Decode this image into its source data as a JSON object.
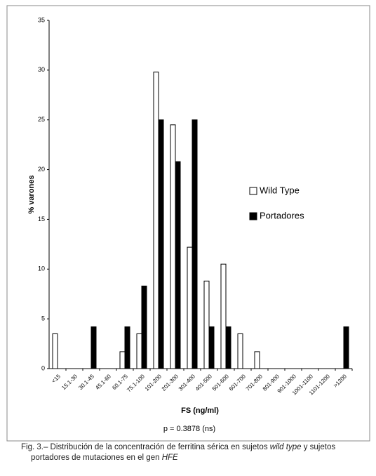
{
  "chart_data": {
    "type": "bar",
    "categories": [
      "<15",
      "15.1-30",
      "30.1-45",
      "45.1-60",
      "60.1-75",
      "75.1-100",
      "101-200",
      "201-300",
      "301-400",
      "401-500",
      "501-600",
      "601-700",
      "701-800",
      "801-900",
      "901-1000",
      "1001-1100",
      "1101-1200",
      ">1200"
    ],
    "series": [
      {
        "name": "Wild Type",
        "color": "#ffffff",
        "values": [
          3.5,
          0,
          0,
          0,
          1.7,
          3.5,
          29.8,
          24.5,
          12.2,
          8.8,
          10.5,
          3.5,
          1.7,
          0,
          0,
          0,
          0,
          0
        ]
      },
      {
        "name": "Portadores",
        "color": "#000000",
        "values": [
          0,
          0,
          4.2,
          0,
          4.2,
          8.3,
          25,
          20.8,
          25,
          4.2,
          4.2,
          0,
          0,
          0,
          0,
          0,
          0,
          4.2
        ]
      }
    ],
    "ylim": [
      0,
      35
    ],
    "yticks": [
      0,
      5,
      10,
      15,
      20,
      25,
      30,
      35
    ],
    "grid": false,
    "ylabel": "% varones",
    "xlabel": "FS (ng/ml)",
    "annotation": "p = 0.3878 (ns)",
    "legend": "right",
    "caption": [
      "Fig. 3.– Distribución de la concentración de ferritina sérica en sujetos ",
      "wild type",
      " y sujetos portadores de mutaciones en el gen ",
      "HFE"
    ]
  }
}
